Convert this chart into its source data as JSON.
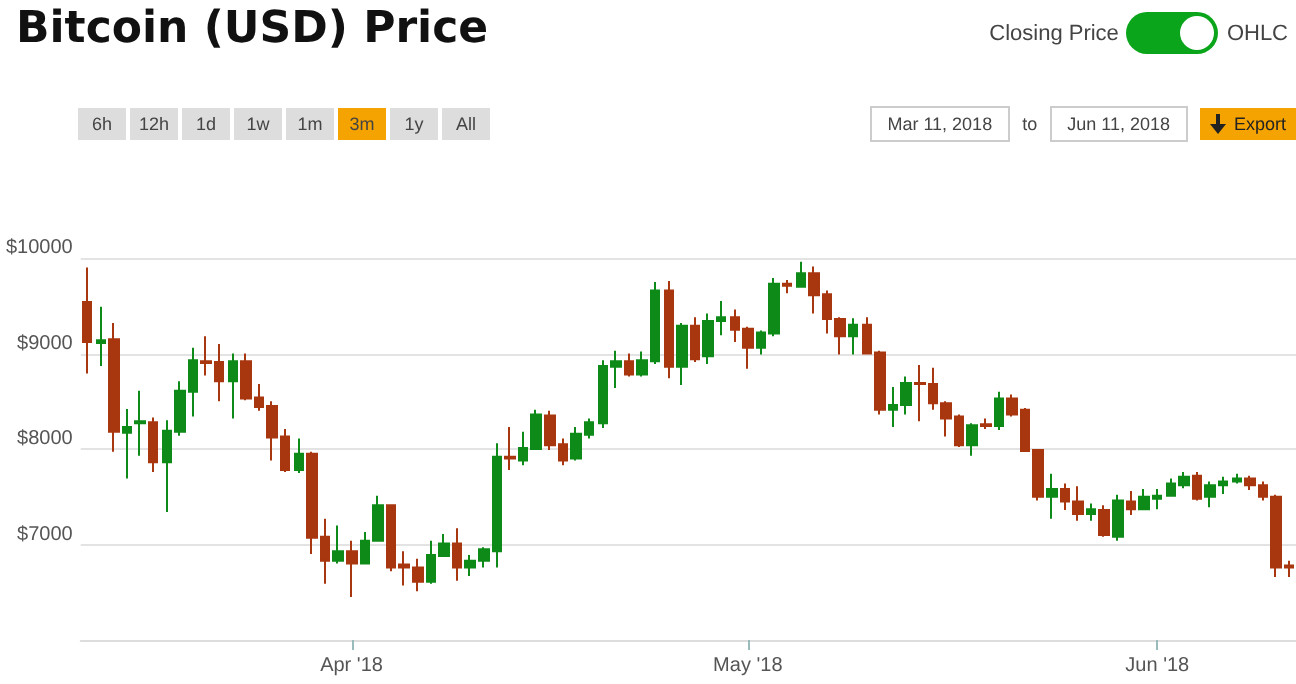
{
  "chart_data": {
    "type": "candlestick",
    "title": "Bitcoin (USD) Price",
    "annotations": [
      "Closing Price",
      "OHLC",
      "6h",
      "12h",
      "1d",
      "1w",
      "1m",
      "3m",
      "1y",
      "All",
      "Mar 11, 2018",
      "to",
      "Jun 11, 2018",
      "Export"
    ],
    "x": [
      "2018-03-12",
      "2018-03-13",
      "2018-03-14",
      "2018-03-15",
      "2018-03-16",
      "2018-03-17",
      "2018-03-18",
      "2018-03-19",
      "2018-03-20",
      "2018-03-21",
      "2018-03-22",
      "2018-03-23",
      "2018-03-24",
      "2018-03-25",
      "2018-03-26",
      "2018-03-27",
      "2018-03-28",
      "2018-03-29",
      "2018-03-30",
      "2018-03-31",
      "2018-04-01",
      "2018-04-02",
      "2018-04-03",
      "2018-04-04",
      "2018-04-05",
      "2018-04-06",
      "2018-04-07",
      "2018-04-08",
      "2018-04-09",
      "2018-04-10",
      "2018-04-11",
      "2018-04-12",
      "2018-04-13",
      "2018-04-14",
      "2018-04-15",
      "2018-04-16",
      "2018-04-17",
      "2018-04-18",
      "2018-04-19",
      "2018-04-20",
      "2018-04-21",
      "2018-04-22",
      "2018-04-23",
      "2018-04-24",
      "2018-04-25",
      "2018-04-26",
      "2018-04-27",
      "2018-04-28",
      "2018-04-29",
      "2018-04-30",
      "2018-05-01",
      "2018-05-02",
      "2018-05-03",
      "2018-05-04",
      "2018-05-05",
      "2018-05-06",
      "2018-05-07",
      "2018-05-08",
      "2018-05-09",
      "2018-05-10",
      "2018-05-11",
      "2018-05-12",
      "2018-05-13",
      "2018-05-14",
      "2018-05-15",
      "2018-05-16",
      "2018-05-17",
      "2018-05-18",
      "2018-05-19",
      "2018-05-20",
      "2018-05-21",
      "2018-05-22",
      "2018-05-23",
      "2018-05-24",
      "2018-05-25",
      "2018-05-26",
      "2018-05-27",
      "2018-05-28",
      "2018-05-29",
      "2018-05-30",
      "2018-05-31",
      "2018-06-01",
      "2018-06-02",
      "2018-06-03",
      "2018-06-04",
      "2018-06-05",
      "2018-06-06",
      "2018-06-07",
      "2018-06-08",
      "2018-06-09",
      "2018-06-10",
      "2018-06-11"
    ],
    "ohlc": [
      [
        9540,
        9900,
        8790,
        9120
      ],
      [
        9110,
        9490,
        8870,
        9140
      ],
      [
        9150,
        9320,
        7970,
        8180
      ],
      [
        8170,
        8420,
        7690,
        8230
      ],
      [
        8270,
        8610,
        7930,
        8290
      ],
      [
        8280,
        8330,
        7760,
        7860
      ],
      [
        7860,
        8300,
        7340,
        8190
      ],
      [
        8180,
        8710,
        8140,
        8610
      ],
      [
        8600,
        9060,
        8340,
        8930
      ],
      [
        8920,
        9180,
        8770,
        8900
      ],
      [
        8910,
        9100,
        8500,
        8710
      ],
      [
        8710,
        9000,
        8320,
        8920
      ],
      [
        8920,
        9000,
        8510,
        8530
      ],
      [
        8540,
        8680,
        8400,
        8440
      ],
      [
        8450,
        8500,
        7880,
        8120
      ],
      [
        8130,
        8210,
        7760,
        7780
      ],
      [
        7780,
        8110,
        7750,
        7950
      ],
      [
        7950,
        7970,
        6900,
        7070
      ],
      [
        7080,
        7270,
        6590,
        6830
      ],
      [
        6830,
        7200,
        6800,
        6930
      ],
      [
        6930,
        7040,
        6450,
        6800
      ],
      [
        6800,
        7130,
        6790,
        7040
      ],
      [
        7040,
        7510,
        7030,
        7410
      ],
      [
        7410,
        7420,
        6720,
        6760
      ],
      [
        6790,
        6930,
        6570,
        6760
      ],
      [
        6760,
        6850,
        6510,
        6610
      ],
      [
        6610,
        7040,
        6590,
        6890
      ],
      [
        6880,
        7110,
        6870,
        7010
      ],
      [
        7010,
        7170,
        6620,
        6760
      ],
      [
        6760,
        6890,
        6670,
        6830
      ],
      [
        6830,
        6970,
        6760,
        6950
      ],
      [
        6930,
        8060,
        6760,
        7920
      ],
      [
        7920,
        8230,
        7780,
        7900
      ],
      [
        7880,
        8180,
        7830,
        8010
      ],
      [
        8000,
        8410,
        7990,
        8360
      ],
      [
        8350,
        8400,
        7990,
        8040
      ],
      [
        8050,
        8110,
        7830,
        7880
      ],
      [
        7900,
        8230,
        7880,
        8160
      ],
      [
        8150,
        8320,
        8110,
        8280
      ],
      [
        8270,
        8930,
        8220,
        8870
      ],
      [
        8860,
        9030,
        8640,
        8920
      ],
      [
        8920,
        9000,
        8760,
        8780
      ],
      [
        8780,
        9020,
        8760,
        8930
      ],
      [
        8920,
        9750,
        8890,
        9660
      ],
      [
        9660,
        9760,
        8740,
        8860
      ],
      [
        8860,
        9320,
        8670,
        9290
      ],
      [
        9290,
        9380,
        8910,
        8940
      ],
      [
        8970,
        9420,
        8890,
        9340
      ],
      [
        9340,
        9550,
        9190,
        9380
      ],
      [
        9380,
        9460,
        9120,
        9250
      ],
      [
        9260,
        9280,
        8840,
        9060
      ],
      [
        9060,
        9240,
        8990,
        9220
      ],
      [
        9210,
        9790,
        9180,
        9730
      ],
      [
        9730,
        9770,
        9630,
        9710
      ],
      [
        9700,
        9960,
        9690,
        9840
      ],
      [
        9840,
        9910,
        9420,
        9610
      ],
      [
        9620,
        9660,
        9210,
        9360
      ],
      [
        9360,
        9380,
        8990,
        9180
      ],
      [
        9180,
        9370,
        8990,
        9300
      ],
      [
        9300,
        9380,
        8990,
        9000
      ],
      [
        9010,
        9030,
        8360,
        8410
      ],
      [
        8410,
        8650,
        8230,
        8460
      ],
      [
        8460,
        8760,
        8360,
        8690
      ],
      [
        8690,
        8880,
        8290,
        8680
      ],
      [
        8680,
        8850,
        8410,
        8480
      ],
      [
        8480,
        8500,
        8130,
        8320
      ],
      [
        8340,
        8360,
        8020,
        8040
      ],
      [
        8040,
        8270,
        7930,
        8250
      ],
      [
        8260,
        8320,
        8210,
        8240
      ],
      [
        8240,
        8600,
        8200,
        8530
      ],
      [
        8530,
        8570,
        8340,
        8360
      ],
      [
        8410,
        8430,
        7970,
        7980
      ],
      [
        7990,
        8000,
        7460,
        7500
      ],
      [
        7500,
        7740,
        7270,
        7580
      ],
      [
        7580,
        7640,
        7360,
        7450
      ],
      [
        7450,
        7610,
        7250,
        7320
      ],
      [
        7320,
        7430,
        7250,
        7370
      ],
      [
        7360,
        7410,
        7080,
        7100
      ],
      [
        7080,
        7520,
        7040,
        7460
      ],
      [
        7450,
        7560,
        7310,
        7370
      ],
      [
        7370,
        7580,
        7360,
        7500
      ],
      [
        7480,
        7580,
        7370,
        7510
      ],
      [
        7510,
        7690,
        7500,
        7640
      ],
      [
        7620,
        7760,
        7590,
        7710
      ],
      [
        7720,
        7760,
        7460,
        7480
      ],
      [
        7500,
        7660,
        7390,
        7620
      ],
      [
        7620,
        7710,
        7530,
        7660
      ],
      [
        7660,
        7740,
        7640,
        7690
      ],
      [
        7690,
        7720,
        7570,
        7620
      ],
      [
        7620,
        7660,
        7460,
        7500
      ],
      [
        7500,
        7520,
        6660,
        6760
      ],
      [
        6780,
        6830,
        6660,
        6760
      ]
    ],
    "colors": [
      "#a8360f",
      "#0d8a17",
      "#a8360f",
      "#0d8a17",
      "#0d8a17",
      "#a8360f",
      "#0d8a17",
      "#0d8a17",
      "#0d8a17",
      "#a8360f",
      "#a8360f",
      "#0d8a17",
      "#a8360f",
      "#a8360f",
      "#a8360f",
      "#a8360f",
      "#0d8a17",
      "#a8360f",
      "#a8360f",
      "#0d8a17",
      "#a8360f",
      "#0d8a17",
      "#0d8a17",
      "#a8360f",
      "#a8360f",
      "#a8360f",
      "#0d8a17",
      "#0d8a17",
      "#a8360f",
      "#0d8a17",
      "#0d8a17",
      "#0d8a17",
      "#a8360f",
      "#0d8a17",
      "#0d8a17",
      "#a8360f",
      "#a8360f",
      "#0d8a17",
      "#0d8a17",
      "#0d8a17",
      "#0d8a17",
      "#a8360f",
      "#0d8a17",
      "#0d8a17",
      "#a8360f",
      "#0d8a17",
      "#a8360f",
      "#0d8a17",
      "#0d8a17",
      "#a8360f",
      "#a8360f",
      "#0d8a17",
      "#0d8a17",
      "#a8360f",
      "#0d8a17",
      "#a8360f",
      "#a8360f",
      "#a8360f",
      "#0d8a17",
      "#a8360f",
      "#a8360f",
      "#0d8a17",
      "#0d8a17",
      "#a8360f",
      "#a8360f",
      "#a8360f",
      "#a8360f",
      "#0d8a17",
      "#a8360f",
      "#0d8a17",
      "#a8360f",
      "#a8360f",
      "#a8360f",
      "#0d8a17",
      "#a8360f",
      "#a8360f",
      "#0d8a17",
      "#a8360f",
      "#0d8a17",
      "#a8360f",
      "#0d8a17",
      "#0d8a17",
      "#0d8a17",
      "#0d8a17",
      "#a8360f",
      "#0d8a17",
      "#0d8a17",
      "#0d8a17",
      "#a8360f",
      "#a8360f",
      "#a8360f",
      "#a8360f"
    ],
    "xlim": [
      "2018-03-11T12:00",
      "2018-06-11T12:00"
    ],
    "xticks": [
      {
        "value": "2018-04-01",
        "label": "Apr '18"
      },
      {
        "value": "2018-05-01",
        "label": "May '18"
      },
      {
        "value": "2018-06-01",
        "label": "Jun '18"
      }
    ],
    "ylim": [
      6000,
      10000
    ],
    "yticks": [
      {
        "value": 7000,
        "label": "$7000"
      },
      {
        "value": 8000,
        "label": "$8000"
      },
      {
        "value": 9000,
        "label": "$9000"
      },
      {
        "value": 10000,
        "label": "$10000"
      }
    ],
    "grid": "y"
  }
}
